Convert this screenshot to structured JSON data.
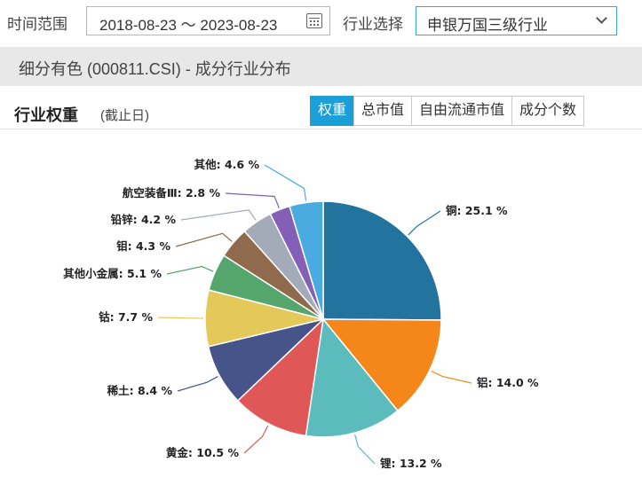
{
  "filters": {
    "time_label": "时间范围",
    "date_range": "2018-08-23 ～ 2023-08-23",
    "industry_label": "行业选择",
    "industry_value": "申银万国三级行业"
  },
  "header": {
    "title": "细分有色 (000811.CSI) - 成分行业分布"
  },
  "section": {
    "title": "行业权重",
    "subtitle": "(截止日)",
    "tabs": [
      "权重",
      "总市值",
      "自由流通市值",
      "成分个数"
    ],
    "active_tab": 0
  },
  "chart_data": {
    "type": "pie",
    "unit": "%",
    "slices": [
      {
        "label": "铜",
        "value": 25.1,
        "display": "铜: 25.1 %",
        "color": "#23739f"
      },
      {
        "label": "铝",
        "value": 14.0,
        "display": "铝: 14.0 %",
        "color": "#f5871a"
      },
      {
        "label": "锂",
        "value": 13.2,
        "display": "锂: 13.2 %",
        "color": "#5cbcbd"
      },
      {
        "label": "黄金",
        "value": 10.5,
        "display": "黄金: 10.5 %",
        "color": "#e05757"
      },
      {
        "label": "稀土",
        "value": 8.4,
        "display": "稀土: 8.4 %",
        "color": "#47548a"
      },
      {
        "label": "钴",
        "value": 7.7,
        "display": "钴: 7.7 %",
        "color": "#e5c85a"
      },
      {
        "label": "其他小金属",
        "value": 5.1,
        "display": "其他小金属: 5.1 %",
        "color": "#55a66c"
      },
      {
        "label": "钼",
        "value": 4.3,
        "display": "钼: 4.3 %",
        "color": "#8f6a4d"
      },
      {
        "label": "铅锌",
        "value": 4.2,
        "display": "铅锌: 4.2 %",
        "color": "#a3abb8"
      },
      {
        "label": "航空装备Ⅲ",
        "value": 2.8,
        "display": "航空装备Ⅲ: 2.8 %",
        "color": "#845fb8"
      },
      {
        "label": "其他",
        "value": 4.6,
        "display": "其他: 4.6 %",
        "color": "#49abe0"
      }
    ]
  }
}
